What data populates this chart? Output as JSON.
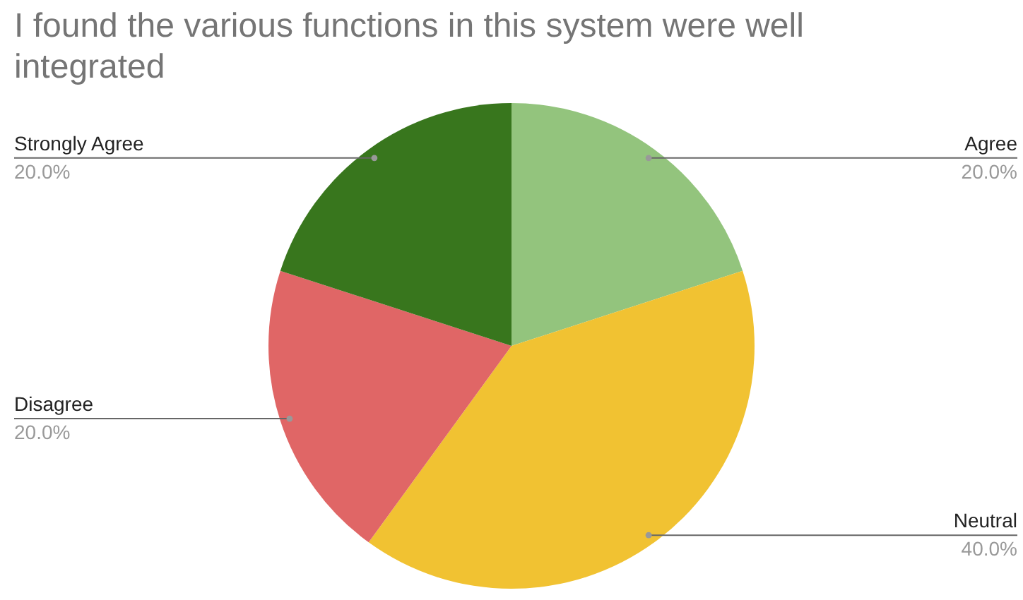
{
  "chart_data": {
    "type": "pie",
    "title": "I found the various functions in this system were well integrated",
    "categories": [
      "Agree",
      "Neutral",
      "Disagree",
      "Strongly Agree"
    ],
    "values": [
      20,
      40,
      20,
      20
    ],
    "colors": [
      "#93c47d",
      "#f1c232",
      "#e06666",
      "#38761d"
    ],
    "value_labels": [
      "20.0%",
      "40.0%",
      "20.0%",
      "20.0%"
    ],
    "legend": false
  }
}
